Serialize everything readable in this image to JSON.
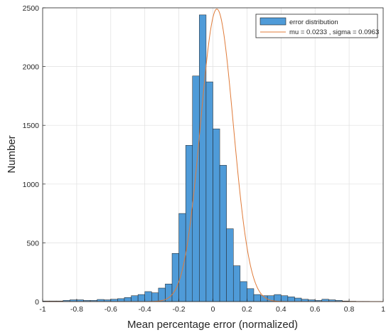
{
  "chart_data": {
    "type": "bar",
    "title": "",
    "xlabel": "Mean percentage error (normalized)",
    "ylabel": "Number",
    "xlim": [
      -1,
      1
    ],
    "ylim": [
      0,
      2500
    ],
    "grid": true,
    "legend_position": "top-right",
    "x_ticks": [
      "-1",
      "-0.8",
      "-0.6",
      "-0.4",
      "-0.2",
      "0",
      "0.2",
      "0.4",
      "0.6",
      "0.8",
      "1"
    ],
    "y_ticks": [
      "0",
      "500",
      "1000",
      "1500",
      "2000",
      "2500"
    ],
    "bin_width": 0.04,
    "bin_starts": [
      -1.0,
      -0.96,
      -0.92,
      -0.88,
      -0.84,
      -0.8,
      -0.76,
      -0.72,
      -0.68,
      -0.64,
      -0.6,
      -0.56,
      -0.52,
      -0.48,
      -0.44,
      -0.4,
      -0.36,
      -0.32,
      -0.28,
      -0.24,
      -0.2,
      -0.16,
      -0.12,
      -0.08,
      -0.04,
      0.0,
      0.04,
      0.08,
      0.12,
      0.16,
      0.2,
      0.24,
      0.28,
      0.32,
      0.36,
      0.4,
      0.44,
      0.48,
      0.52,
      0.56,
      0.6,
      0.64,
      0.68,
      0.72,
      0.76,
      0.8,
      0.84,
      0.88,
      0.92,
      0.96
    ],
    "series": [
      {
        "name": "error distribution",
        "kind": "histogram",
        "color": "#4f9bd8",
        "values": [
          5,
          5,
          5,
          10,
          15,
          15,
          10,
          10,
          18,
          15,
          20,
          25,
          35,
          50,
          60,
          85,
          75,
          115,
          150,
          410,
          750,
          1330,
          1920,
          2440,
          1870,
          1470,
          1160,
          620,
          305,
          170,
          110,
          60,
          50,
          50,
          60,
          50,
          40,
          30,
          20,
          15,
          10,
          20,
          15,
          10,
          5,
          3,
          2,
          2,
          1,
          1
        ]
      },
      {
        "name": "mu = 0.0233 , sigma = 0.0963",
        "kind": "normal-fit",
        "color": "#e07b39",
        "mu": 0.0233,
        "sigma": 0.0963,
        "peak": 2490
      }
    ]
  }
}
